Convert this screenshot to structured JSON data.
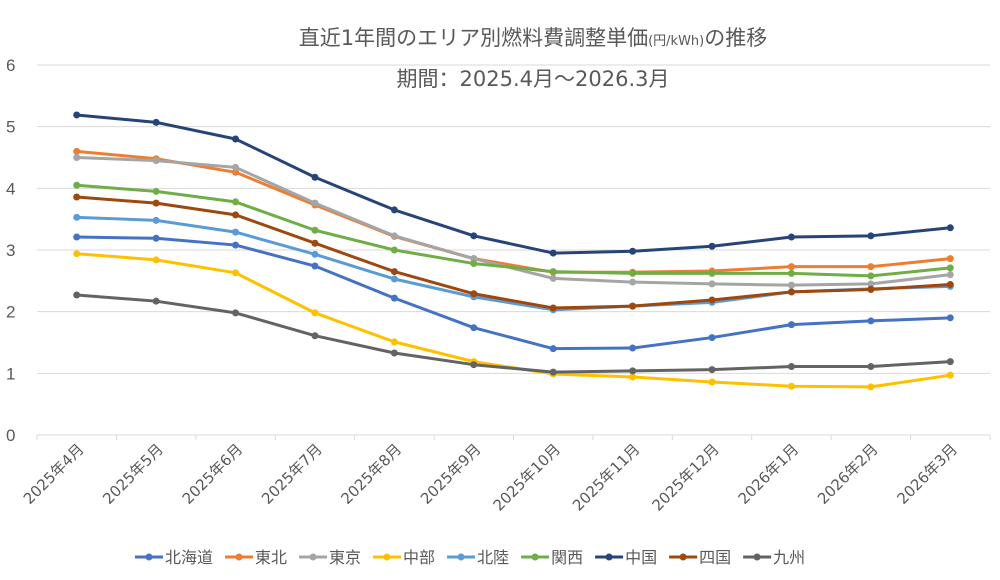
{
  "chart_data": {
    "type": "line",
    "title": "直近1年間のエリア別燃料費調整単価",
    "title_unit": "(円/kWh)",
    "title_suffix": "の推移",
    "subtitle": "期間：2025.4月～2026.3月",
    "xlabel": "",
    "ylabel": "",
    "ylim": [
      0,
      6
    ],
    "yticks": [
      "0",
      "1",
      "2",
      "3",
      "4",
      "5",
      "6"
    ],
    "grid": true,
    "legend_position": "bottom",
    "categories": [
      "2025年4月",
      "2025年5月",
      "2025年6月",
      "2025年7月",
      "2025年8月",
      "2025年9月",
      "2025年10月",
      "2025年11月",
      "2025年12月",
      "2026年1月",
      "2026年2月",
      "2026年3月"
    ],
    "series": [
      {
        "name": "北海道",
        "color": "#4472c4",
        "values": [
          3.21,
          3.19,
          3.08,
          2.74,
          2.22,
          1.74,
          1.4,
          1.41,
          1.58,
          1.79,
          1.85,
          1.9
        ]
      },
      {
        "name": "東北",
        "color": "#ed7d31",
        "values": [
          4.6,
          4.48,
          4.26,
          3.73,
          3.22,
          2.86,
          2.64,
          2.64,
          2.66,
          2.73,
          2.73,
          2.86
        ]
      },
      {
        "name": "東京",
        "color": "#a5a5a5",
        "values": [
          4.5,
          4.45,
          4.34,
          3.76,
          3.23,
          2.86,
          2.54,
          2.48,
          2.45,
          2.43,
          2.45,
          2.6
        ]
      },
      {
        "name": "中部",
        "color": "#ffc000",
        "values": [
          2.94,
          2.84,
          2.63,
          1.98,
          1.51,
          1.19,
          0.99,
          0.94,
          0.86,
          0.79,
          0.78,
          0.97
        ]
      },
      {
        "name": "北陸",
        "color": "#5b9bd5",
        "values": [
          3.53,
          3.48,
          3.29,
          2.93,
          2.53,
          2.24,
          2.03,
          2.09,
          2.15,
          2.32,
          2.37,
          2.41
        ]
      },
      {
        "name": "関西",
        "color": "#70ad47",
        "values": [
          4.05,
          3.95,
          3.78,
          3.32,
          3.0,
          2.78,
          2.65,
          2.62,
          2.62,
          2.62,
          2.58,
          2.71
        ]
      },
      {
        "name": "中国",
        "color": "#264478",
        "values": [
          5.19,
          5.07,
          4.8,
          4.18,
          3.65,
          3.23,
          2.95,
          2.98,
          3.06,
          3.21,
          3.23,
          3.36
        ]
      },
      {
        "name": "四国",
        "color": "#9e480e",
        "values": [
          3.86,
          3.76,
          3.57,
          3.11,
          2.65,
          2.29,
          2.06,
          2.09,
          2.19,
          2.32,
          2.36,
          2.44
        ]
      },
      {
        "name": "九州",
        "color": "#636363",
        "values": [
          2.27,
          2.17,
          1.98,
          1.61,
          1.33,
          1.14,
          1.02,
          1.04,
          1.06,
          1.11,
          1.11,
          1.19
        ]
      }
    ]
  }
}
